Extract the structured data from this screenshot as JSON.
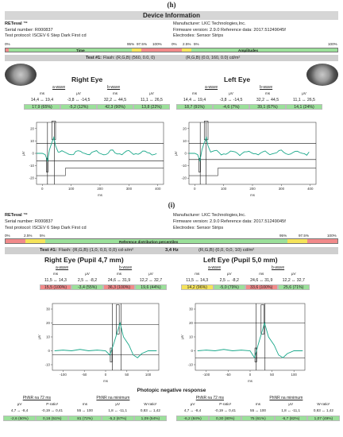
{
  "panel_h": {
    "label": "(h)",
    "header": "Device Information",
    "brand": "RETeval ™",
    "serial": "Serial number: R000837",
    "protocol": "Test protocol: ISCEV 6 Step Dark First cd",
    "manufacturer": "Manufacturer: LKC Technologies,Inc.",
    "firmware": "Firmware version: 2.9.0 Reference data: 2017.51249045f",
    "electrodes": "Electrodes: Sensor Strips",
    "pct_left": "0%",
    "pct_right": "100%",
    "pct_95": "95%",
    "pct_975": "97.5%",
    "pct_100": "100%",
    "pct_0": "0%",
    "pct_25": "2.5%",
    "pct_5": "5%",
    "time_label": "Time",
    "amp_label": "Amplitudes",
    "test_label": "Test #1:",
    "flash_left": "Flash: (R,G,B) (560, 0.0, 0)",
    "flash_right": "(R,G,B) (0.0, 160, 0.0) cd/m²",
    "right_eye": {
      "title": "Right Eye",
      "a_wave": "a-wave",
      "b_wave": "b-wave",
      "units": [
        "ms",
        "μV",
        "ms",
        "μV"
      ],
      "ranges": [
        "14,4 ↔ 19,4",
        "-3,8 ↔ -14,5",
        "32,2 ↔ 44,5",
        "11,1 ↔ 26,5"
      ],
      "values": [
        "17,9 (65%)",
        "-5,2 (12%)",
        "42,3 (90%)",
        "13,8 (22%)"
      ]
    },
    "left_eye": {
      "title": "Left Eye",
      "a_wave": "a-wave",
      "b_wave": "b-wave",
      "units": [
        "ms",
        "μV",
        "ms",
        "μV"
      ],
      "ranges": [
        "14,4 ↔ 19,4",
        "-3,8 ↔ -14,5",
        "32,2 ↔ 44,5",
        "11,1 ↔ 26,5"
      ],
      "values": [
        "18,7 (91%)",
        "-4,6 (7%)",
        "39,1 (67%)",
        "14,1 (24%)"
      ]
    },
    "plot_ylabel": "μV",
    "plot_xlabel": "ms",
    "y_ticks": [
      "20",
      "10",
      "0",
      "-10",
      "-20"
    ],
    "x_ticks": [
      "0",
      "100",
      "200",
      "300",
      "400"
    ]
  },
  "panel_i": {
    "label": "(i)",
    "brand": "RETeval ™",
    "serial": "Serial number: R000837",
    "protocol": "Test protocol: ISCEV 6 Step Dark First cd",
    "manufacturer": "Manufacturer: LKC Technologies,Inc.",
    "firmware": "Firmware version: 2.9.0 Reference data: 2017.51249045f",
    "electrodes": "Electrodes: Sensor Strips",
    "ref_bar_label": "Reference distribution percentiles",
    "pct_0": "0%",
    "pct_25": "2.5%",
    "pct_5": "5%",
    "pct_95": "95%",
    "pct_975": "97.5%",
    "pct_100": "100%",
    "test_label": "Test #1:",
    "flash_left": "Flash: (R,G,B) (1,0, 0,0, 0,0) cd·s/m²",
    "hz": "3,4 Hz",
    "flash_right": "(R,G,B) (0,0, 0,0, 10) cd/m²",
    "right_eye": {
      "title": "Right Eye (Pupil 4,7 mm)",
      "a_wave": "a-wave",
      "b_wave": "b-wave",
      "units": [
        "ms",
        "μV",
        "ms",
        "μV"
      ],
      "ranges": [
        "11,5 ↔ 14,3",
        "2,5 ↔ -8,2",
        "24,6 ↔ 31,9",
        "12,2 ↔ 32,7"
      ],
      "values": [
        "15,5 (100%)",
        "-3,4 (55%)",
        "36,3 (100%)",
        "19,6 (44%)"
      ]
    },
    "left_eye": {
      "title": "Left Eye (Pupil 5,0 mm)",
      "a_wave": "a-wave",
      "b_wave": "b-wave",
      "units": [
        "ms",
        "μV",
        "ms",
        "μV"
      ],
      "ranges": [
        "11,5 ↔ 14,3",
        "2,5 ↔ -8,2",
        "24,6 ↔ 31,9",
        "12,2 ↔ 32,7"
      ],
      "values": [
        "14,2 (96%)",
        "-5,0 (79%)",
        "33,6 (100%)",
        "25,6 (71%)"
      ]
    },
    "plot_ylabel": "μV",
    "plot_xlabel": "ms",
    "y_ticks": [
      "30",
      "20",
      "10",
      "0",
      "-10"
    ],
    "x_ticks": [
      "-100",
      "-50",
      "0",
      "50",
      "100"
    ],
    "phnr_title": "Photopic negative response",
    "phnr_right": {
      "h1": "PhNR na 72 ms",
      "h2": "PhNR na minimum",
      "units": [
        "μV",
        "P-ratio¹",
        "ms",
        "μV",
        "W-ratio¹"
      ],
      "ranges": [
        "4,7 ↔ -8,4",
        "-0,19 ↔ 0,41",
        "55 ↔ 100",
        "1,8 ↔ -11,1",
        "0,83 ↔ 1,42"
      ],
      "values": [
        "-2,6 (50%)",
        "0,16 (51%)",
        "81 (72%)",
        "-5,2 (67%)",
        "1,09 (54%)"
      ]
    },
    "phnr_left": {
      "h1": "PhNR na 72 ms",
      "h2": "PhNR na minimum",
      "units": [
        "μV",
        "P-ratio¹",
        "ms",
        "μV",
        "W-ratio¹"
      ],
      "ranges": [
        "4,7 ↔ -8,4",
        "-0,19 ↔ 0,41",
        "55 ↔ 100",
        "1,8 ↔ -11,1",
        "0,83 ↔ 1,42"
      ],
      "values": [
        "-6,2 (84%)",
        "0,30 (80%)",
        "75 (61%)",
        "-6,7 (82%)",
        "1,07 (49%)"
      ]
    }
  },
  "colors": {
    "green": "#9be09a",
    "red": "#f18a8a",
    "yellow": "#f5e35a",
    "trace": "#1aa88a"
  }
}
